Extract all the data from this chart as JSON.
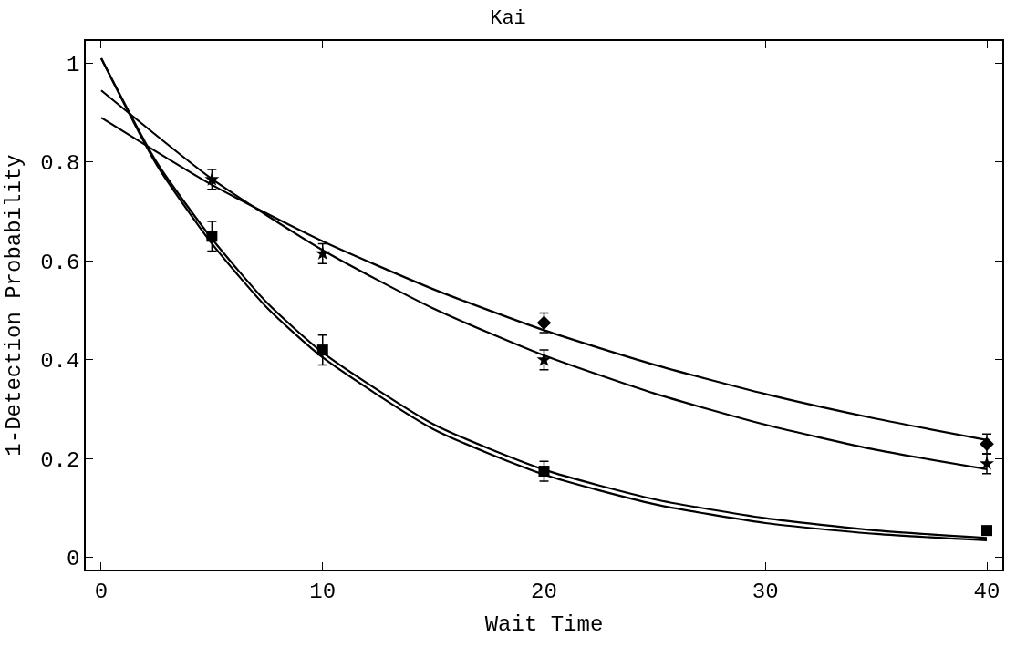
{
  "chart_data": {
    "type": "scatter",
    "title": "Kai",
    "xlabel": "Wait Time",
    "ylabel": "1-Detection Probability",
    "x": [
      5,
      10,
      20,
      40
    ],
    "series": [
      {
        "marker": "diamond",
        "color": "#000000",
        "values": [
          null,
          null,
          0.475,
          0.23
        ],
        "errors": [
          null,
          null,
          0.02,
          0.02
        ]
      },
      {
        "marker": "star",
        "color": "#000000",
        "values": [
          0.765,
          0.615,
          0.4,
          0.19
        ],
        "errors": [
          0.02,
          0.02,
          0.02,
          0.02
        ]
      },
      {
        "marker": "square",
        "color": "#000000",
        "values": [
          0.65,
          0.42,
          0.175,
          0.055
        ],
        "errors": [
          0.03,
          0.03,
          0.02,
          null
        ]
      },
      {
        "type": "line",
        "marker": "none",
        "color": "#000000",
        "x": [
          0,
          5,
          10,
          15,
          20,
          25,
          30,
          35,
          40
        ],
        "values": [
          0.89,
          0.754,
          0.64,
          0.543,
          0.46,
          0.39,
          0.331,
          0.281,
          0.238
        ]
      },
      {
        "type": "line",
        "marker": "none",
        "color": "#000000",
        "x": [
          0,
          5,
          10,
          15,
          20,
          25,
          30,
          35,
          40
        ],
        "values": [
          0.945,
          0.766,
          0.622,
          0.504,
          0.409,
          0.332,
          0.269,
          0.218,
          0.179
        ]
      },
      {
        "type": "line",
        "marker": "none",
        "color": "#000000",
        "x": [
          0,
          2.5,
          5,
          7.5,
          10,
          15,
          20,
          25,
          30,
          35,
          40
        ],
        "values": [
          1.01,
          0.8,
          0.645,
          0.515,
          0.415,
          0.27,
          0.178,
          0.118,
          0.08,
          0.055,
          0.04
        ]
      },
      {
        "type": "line",
        "marker": "none",
        "color": "#000000",
        "x": [
          0,
          2.5,
          5,
          7.5,
          10,
          15,
          20,
          25,
          30,
          35,
          40
        ],
        "values": [
          1.01,
          0.795,
          0.635,
          0.505,
          0.405,
          0.26,
          0.168,
          0.108,
          0.07,
          0.048,
          0.035
        ]
      }
    ],
    "xlim": [
      -0.7,
      40.7
    ],
    "xticks": [
      0,
      10,
      20,
      30,
      40
    ],
    "ylim": [
      -0.024,
      1.045
    ],
    "yticks": [
      0,
      0.2,
      0.4,
      0.6,
      0.8,
      1
    ],
    "line_style": "solid"
  }
}
